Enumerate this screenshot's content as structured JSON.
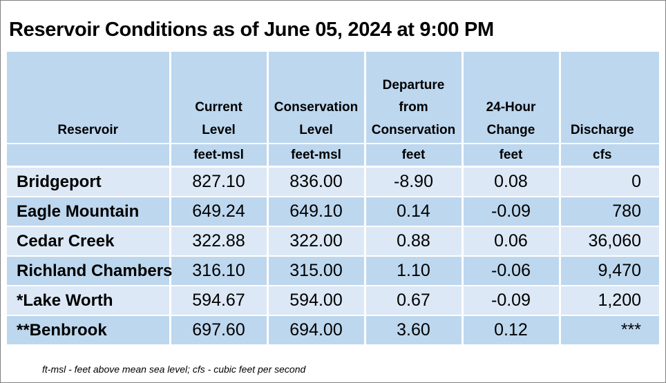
{
  "title": "Reservoir Conditions as of June 05, 2024 at 9:00 PM",
  "headers": {
    "reservoir": "Reservoir",
    "current_level": [
      "Current",
      "Level"
    ],
    "conservation_level": [
      "Conservation",
      "Level"
    ],
    "departure": [
      "Departure",
      "from",
      "Conservation"
    ],
    "change_24h": [
      "24-Hour",
      "Change"
    ],
    "discharge": [
      "Discharge"
    ]
  },
  "units": [
    "",
    "feet-msl",
    "feet-msl",
    "feet",
    "feet",
    "cfs"
  ],
  "rows": [
    {
      "name": "Bridgeport",
      "current": "827.10",
      "conservation": "836.00",
      "departure": "-8.90",
      "change": "0.08",
      "discharge": "0"
    },
    {
      "name": "Eagle Mountain",
      "current": "649.24",
      "conservation": "649.10",
      "departure": "0.14",
      "change": "-0.09",
      "discharge": "780"
    },
    {
      "name": "Cedar Creek",
      "current": "322.88",
      "conservation": "322.00",
      "departure": "0.88",
      "change": "0.06",
      "discharge": "36,060"
    },
    {
      "name": "Richland Chambers",
      "current": "316.10",
      "conservation": "315.00",
      "departure": "1.10",
      "change": "-0.06",
      "discharge": "9,470"
    },
    {
      "name": "*Lake Worth",
      "current": "594.67",
      "conservation": "594.00",
      "departure": "0.67",
      "change": "-0.09",
      "discharge": "1,200"
    },
    {
      "name": "**Benbrook",
      "current": "697.60",
      "conservation": "694.00",
      "departure": "3.60",
      "change": "0.12",
      "discharge": "***"
    }
  ],
  "footnote": "ft-msl - feet above mean sea level; cfs - cubic feet per second",
  "colors": {
    "header_bg": "#bdd7ee",
    "row_light": "#dce8f5",
    "row_dark": "#bdd7ee"
  }
}
